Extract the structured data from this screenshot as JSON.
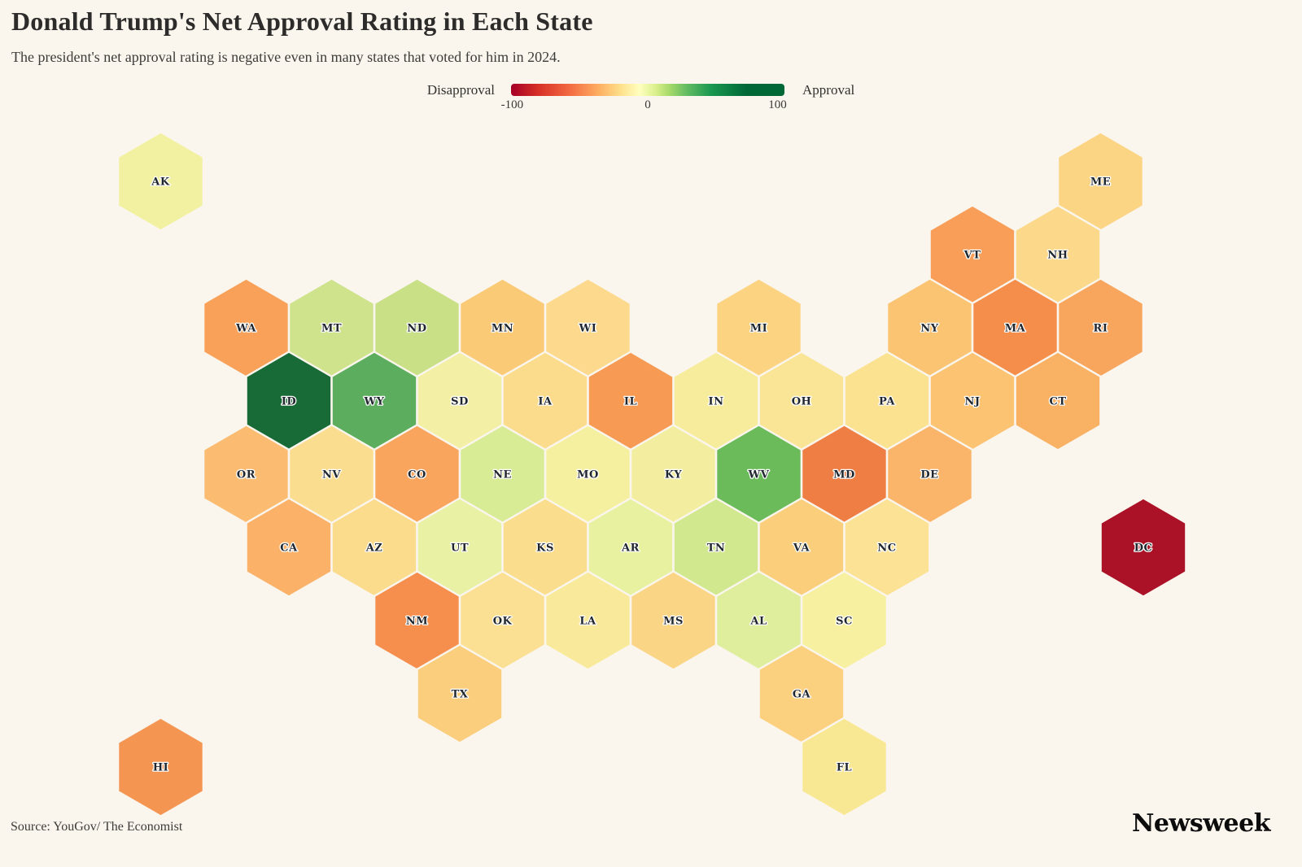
{
  "header": {
    "title": "Donald Trump's Net Approval Rating in Each State",
    "subtitle": "The president's net approval rating is negative even in many states that voted for him in 2024."
  },
  "legend": {
    "left_label": "Disapproval",
    "right_label": "Approval",
    "ticks": [
      "-100",
      "0",
      "100"
    ],
    "gradient_stops": [
      "#a50026 0%",
      "#d73027 10%",
      "#f46d43 22%",
      "#fdae61 32%",
      "#fee08b 40%",
      "#ffffbf 47%",
      "#d9ef8b 53%",
      "#a6d96a 58%",
      "#66bd63 64%",
      "#1a9850 73%",
      "#006837 86%",
      "#006837 100%"
    ]
  },
  "footer": {
    "source": "Source: YouGov/ The Economist",
    "brand": "Newsweek"
  },
  "colors": {
    "background": "#faf6ee",
    "hex_label_text": "#20262e",
    "hex_label_outline": "#ffffff",
    "deep_disapproval": "#ab1228",
    "deep_approval": "#186b37"
  },
  "chart_data": {
    "type": "heatmap",
    "subtype": "hexbin-cartogram-us-states",
    "title": "Donald Trump's Net Approval Rating in Each State",
    "color_scale": {
      "min": -100,
      "mid": 0,
      "max": 100,
      "min_label": "Disapproval",
      "max_label": "Approval",
      "palette": "red-yellow-green"
    },
    "value_note": "Only state abbreviations are printed on the map; net_approval_est is read off each hex color against the -100..100 legend scale.",
    "states": [
      {
        "abbr": "AK",
        "row": 1,
        "col": -14,
        "color": "#f2f1a1",
        "net_approval_est": -3
      },
      {
        "abbr": "ME",
        "row": 1,
        "col": 8,
        "color": "#fcd584",
        "net_approval_est": -26
      },
      {
        "abbr": "VT",
        "row": 2,
        "col": 5,
        "color": "#f89e58",
        "net_approval_est": -44
      },
      {
        "abbr": "NH",
        "row": 2,
        "col": 7,
        "color": "#fcd98a",
        "net_approval_est": -24
      },
      {
        "abbr": "WA",
        "row": 3,
        "col": -12,
        "color": "#f9a159",
        "net_approval_est": -42
      },
      {
        "abbr": "MT",
        "row": 3,
        "col": -10,
        "color": "#cfe38c",
        "net_approval_est": 20
      },
      {
        "abbr": "ND",
        "row": 3,
        "col": -8,
        "color": "#c9e087",
        "net_approval_est": 24
      },
      {
        "abbr": "MN",
        "row": 3,
        "col": -6,
        "color": "#fbca76",
        "net_approval_est": -30
      },
      {
        "abbr": "WI",
        "row": 3,
        "col": -4,
        "color": "#fcd98c",
        "net_approval_est": -24
      },
      {
        "abbr": "MI",
        "row": 3,
        "col": 0,
        "color": "#fcd381",
        "net_approval_est": -26
      },
      {
        "abbr": "NY",
        "row": 3,
        "col": 4,
        "color": "#fbc473",
        "net_approval_est": -31
      },
      {
        "abbr": "MA",
        "row": 3,
        "col": 6,
        "color": "#f58d4b",
        "net_approval_est": -50
      },
      {
        "abbr": "RI",
        "row": 3,
        "col": 8,
        "color": "#f8a55e",
        "net_approval_est": -43
      },
      {
        "abbr": "ID",
        "row": 4,
        "col": -11,
        "color": "#186b37",
        "net_approval_est": 90
      },
      {
        "abbr": "WY",
        "row": 4,
        "col": -9,
        "color": "#5cae5e",
        "net_approval_est": 62
      },
      {
        "abbr": "SD",
        "row": 4,
        "col": -7,
        "color": "#f3f0a6",
        "net_approval_est": -4
      },
      {
        "abbr": "IA",
        "row": 4,
        "col": -5,
        "color": "#fbdc8c",
        "net_approval_est": -23
      },
      {
        "abbr": "IL",
        "row": 4,
        "col": -3,
        "color": "#f69a54",
        "net_approval_est": -45
      },
      {
        "abbr": "IN",
        "row": 4,
        "col": -1,
        "color": "#f7ec9b",
        "net_approval_est": -12
      },
      {
        "abbr": "OH",
        "row": 4,
        "col": 1,
        "color": "#fae597",
        "net_approval_est": -18
      },
      {
        "abbr": "PA",
        "row": 4,
        "col": 3,
        "color": "#fbe291",
        "net_approval_est": -20
      },
      {
        "abbr": "NJ",
        "row": 4,
        "col": 5,
        "color": "#fbc372",
        "net_approval_est": -32
      },
      {
        "abbr": "CT",
        "row": 4,
        "col": 7,
        "color": "#f9b264",
        "net_approval_est": -38
      },
      {
        "abbr": "OR",
        "row": 5,
        "col": -12,
        "color": "#fbbc71",
        "net_approval_est": -34
      },
      {
        "abbr": "NV",
        "row": 5,
        "col": -10,
        "color": "#fbdd90",
        "net_approval_est": -22
      },
      {
        "abbr": "CO",
        "row": 5,
        "col": -8,
        "color": "#f9a55e",
        "net_approval_est": -41
      },
      {
        "abbr": "NE",
        "row": 5,
        "col": -6,
        "color": "#d8eb95",
        "net_approval_est": 15
      },
      {
        "abbr": "MO",
        "row": 5,
        "col": -4,
        "color": "#f5f0a0",
        "net_approval_est": -7
      },
      {
        "abbr": "KY",
        "row": 5,
        "col": -2,
        "color": "#f3ee9f",
        "net_approval_est": -7
      },
      {
        "abbr": "WV",
        "row": 5,
        "col": 0,
        "color": "#6cbb5b",
        "net_approval_est": 57
      },
      {
        "abbr": "MD",
        "row": 5,
        "col": 2,
        "color": "#ee7e44",
        "net_approval_est": -54
      },
      {
        "abbr": "DE",
        "row": 5,
        "col": 4,
        "color": "#fbb56a",
        "net_approval_est": -36
      },
      {
        "abbr": "CA",
        "row": 6,
        "col": -11,
        "color": "#fbb168",
        "net_approval_est": -37
      },
      {
        "abbr": "AZ",
        "row": 6,
        "col": -9,
        "color": "#fbdc8c",
        "net_approval_est": -23
      },
      {
        "abbr": "UT",
        "row": 6,
        "col": -7,
        "color": "#e9f1a5",
        "net_approval_est": 6
      },
      {
        "abbr": "KS",
        "row": 6,
        "col": -5,
        "color": "#fade8e",
        "net_approval_est": -22
      },
      {
        "abbr": "AR",
        "row": 6,
        "col": -3,
        "color": "#e8f1a0",
        "net_approval_est": 5
      },
      {
        "abbr": "TN",
        "row": 6,
        "col": -1,
        "color": "#d2e88f",
        "net_approval_est": 18
      },
      {
        "abbr": "VA",
        "row": 6,
        "col": 1,
        "color": "#fbce7c",
        "net_approval_est": -28
      },
      {
        "abbr": "NC",
        "row": 6,
        "col": 3,
        "color": "#fce295",
        "net_approval_est": -20
      },
      {
        "abbr": "DC",
        "row": 6,
        "col": 9,
        "color": "#ab1228",
        "net_approval_est": -90
      },
      {
        "abbr": "NM",
        "row": 7,
        "col": -8,
        "color": "#f68f4e",
        "net_approval_est": -48
      },
      {
        "abbr": "OK",
        "row": 7,
        "col": -6,
        "color": "#fbdf92",
        "net_approval_est": -21
      },
      {
        "abbr": "LA",
        "row": 7,
        "col": -4,
        "color": "#f9ea9b",
        "net_approval_est": -14
      },
      {
        "abbr": "MS",
        "row": 7,
        "col": -2,
        "color": "#fbd586",
        "net_approval_est": -25
      },
      {
        "abbr": "AL",
        "row": 7,
        "col": 0,
        "color": "#dfee9c",
        "net_approval_est": 10
      },
      {
        "abbr": "SC",
        "row": 7,
        "col": 2,
        "color": "#f7f0a0",
        "net_approval_est": -9
      },
      {
        "abbr": "TX",
        "row": 8,
        "col": -7,
        "color": "#fbce7d",
        "net_approval_est": -28
      },
      {
        "abbr": "GA",
        "row": 8,
        "col": 1,
        "color": "#fbd07e",
        "net_approval_est": -28
      },
      {
        "abbr": "HI",
        "row": 9,
        "col": -14,
        "color": "#f59552",
        "net_approval_est": -44
      },
      {
        "abbr": "FL",
        "row": 9,
        "col": 2,
        "color": "#f9e893",
        "net_approval_est": -16
      }
    ]
  }
}
